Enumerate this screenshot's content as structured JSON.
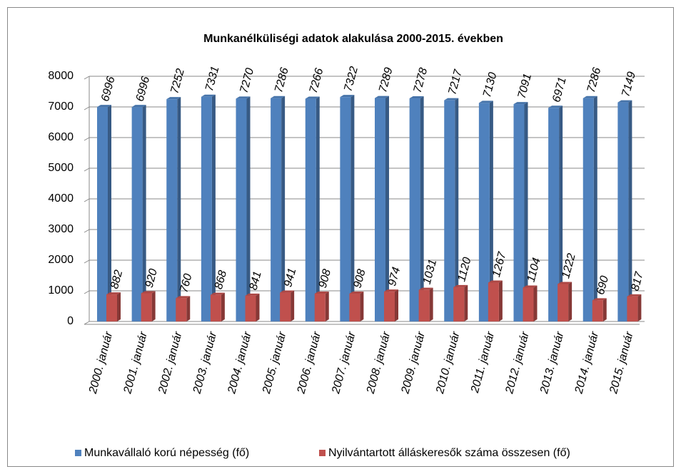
{
  "chart_data": {
    "type": "bar",
    "title": "Munkanélküliségi adatok alakulása 2000-2015. években",
    "categories": [
      "2000. január",
      "2001. január",
      "2002. január",
      "2003. január",
      "2004. január",
      "2005. január",
      "2006. január",
      "2007. január",
      "2008. január",
      "2009. január",
      "2010. január",
      "2011. január",
      "2012. január",
      "2013. január",
      "2014. január",
      "2015. január"
    ],
    "series": [
      {
        "name": "Munkavállaló korú népesség (fő)",
        "color": "#4f81bd",
        "values": [
          6996,
          6996,
          7252,
          7331,
          7270,
          7286,
          7266,
          7322,
          7289,
          7278,
          7217,
          7130,
          7091,
          6971,
          7286,
          7149
        ]
      },
      {
        "name": "Nyilvántartott álláskeresők száma összesen (fő)",
        "color": "#c0504d",
        "values": [
          882,
          920,
          760,
          868,
          841,
          941,
          908,
          908,
          974,
          1031,
          1120,
          1267,
          1104,
          1222,
          690,
          817
        ]
      }
    ],
    "ylim": [
      0,
      8000
    ],
    "yticks": [
      0,
      1000,
      2000,
      3000,
      4000,
      5000,
      6000,
      7000,
      8000
    ],
    "grid": true,
    "legend": "bottom"
  }
}
